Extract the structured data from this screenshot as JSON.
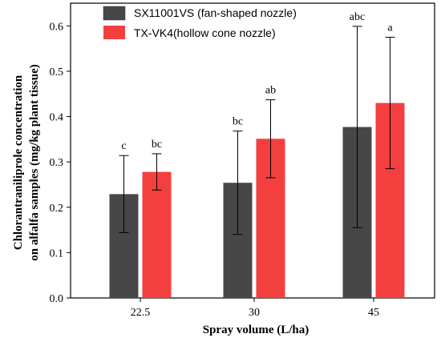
{
  "chart_data": {
    "type": "bar",
    "xlabel": "Spray volume (L/ha)",
    "ylabel_line1": "Chlorantraniliprole concentration",
    "ylabel_line2": "on alfalfa samples (mg/kg plant tissue)",
    "categories": [
      "22.5",
      "30",
      "45"
    ],
    "ylim": [
      0,
      0.65
    ],
    "yticks": [
      "0.0",
      "0.1",
      "0.2",
      "0.3",
      "0.4",
      "0.5",
      "0.6"
    ],
    "legend_position": "top-left",
    "series": [
      {
        "name": "SX11001VS (fan-shaped nozzle)",
        "color": "#474747",
        "values": [
          0.229,
          0.254,
          0.377
        ],
        "error": [
          0.085,
          0.114,
          0.222
        ],
        "labels": [
          "c",
          "bc",
          "abc"
        ]
      },
      {
        "name": "TX-VK4(hollow cone nozzle)",
        "color": "#f43f3f",
        "values": [
          0.278,
          0.351,
          0.43
        ],
        "error": [
          0.04,
          0.086,
          0.145
        ],
        "labels": [
          "bc",
          "ab",
          "a"
        ]
      }
    ]
  }
}
